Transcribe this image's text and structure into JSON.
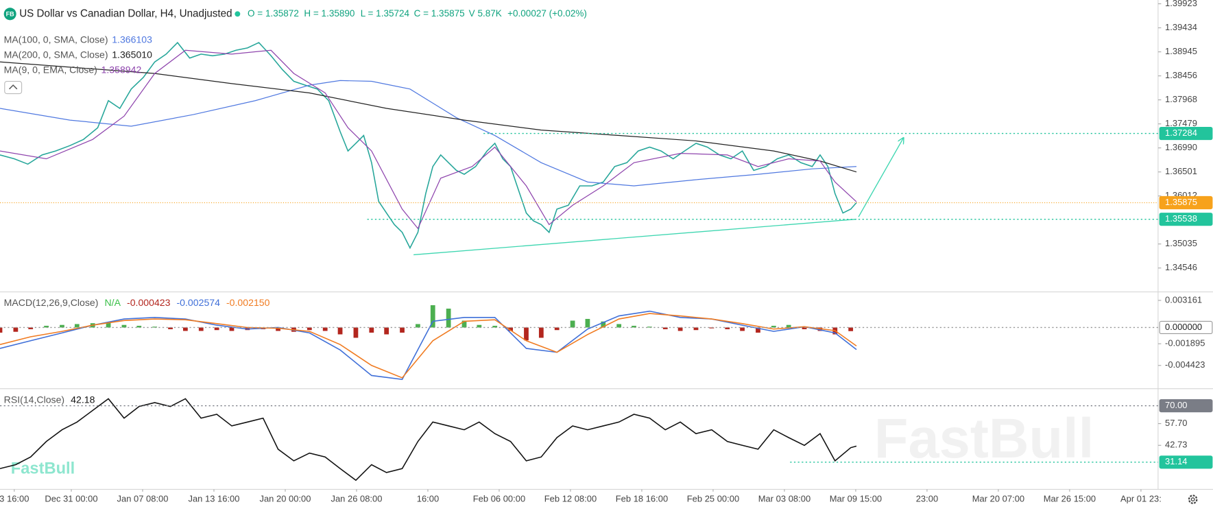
{
  "header": {
    "logo": "FB",
    "title": "US Dollar vs Canadian Dollar, H4, Unadjusted",
    "ohlc": [
      "O = 1.35872",
      "H = 1.35890",
      "L = 1.35724",
      "C = 1.35875",
      "V 5.87K"
    ],
    "change": "+0.00027 (+0.02%)",
    "watermark": "FastBull"
  },
  "chart_data": [
    {
      "type": "line",
      "xlim": [
        0,
        16.24
      ],
      "ylim": [
        1.3406,
        1.4
      ],
      "yticks": [
        1.39923,
        1.39434,
        1.38945,
        1.38456,
        1.37968,
        1.37479,
        {
          "value": 1.3699,
          "label": "1.36990"
        },
        1.36501,
        1.36012,
        1.35035,
        1.34546
      ],
      "current_color": "#f7a21b",
      "levels": [
        {
          "value": 1.37284,
          "color": "#22c49c",
          "start": 6.78
        },
        {
          "value": 1.35538,
          "color": "#22c49c",
          "start": 5.15
        }
      ],
      "drawings": [
        {
          "kind": "line",
          "x": [
            5.8,
            12.01
          ],
          "values": [
            1.34814,
            1.35539
          ],
          "color": "#3dd6b0"
        },
        {
          "kind": "arrow",
          "x": [
            12.04,
            12.67
          ],
          "values": [
            1.35587,
            1.37195
          ],
          "color": "#3dd6b0"
        }
      ],
      "series": [
        {
          "color": "#26a69a",
          "x": [
            0,
            0.2,
            0.39,
            0.59,
            0.78,
            0.98,
            1.17,
            1.37,
            1.52,
            1.68,
            1.84,
            2.01,
            2.17,
            2.33,
            2.49,
            2.66,
            2.82,
            2.98,
            3.15,
            3.31,
            3.47,
            3.63,
            3.8,
            3.96,
            4.12,
            4.28,
            4.45,
            4.61,
            4.77,
            4.88,
            4.99,
            5.1,
            5.21,
            5.31,
            5.42,
            5.53,
            5.64,
            5.75,
            5.86,
            5.97,
            6.07,
            6.18,
            6.29,
            6.4,
            6.51,
            6.67,
            6.83,
            6.94,
            7.05,
            7.16,
            7.27,
            7.38,
            7.48,
            7.59,
            7.7,
            7.81,
            7.97,
            8.13,
            8.3,
            8.46,
            8.62,
            8.79,
            8.95,
            9.11,
            9.27,
            9.44,
            9.6,
            9.76,
            9.92,
            10.09,
            10.25,
            10.41,
            10.57,
            10.74,
            10.9,
            11.06,
            11.23,
            11.39,
            11.5,
            11.61,
            11.71,
            11.82,
            11.93,
            12.01
          ],
          "values": [
            1.36848,
            1.36769,
            1.36659,
            1.36848,
            1.36927,
            1.37037,
            1.37163,
            1.374,
            1.37952,
            1.37794,
            1.38188,
            1.38425,
            1.3874,
            1.38898,
            1.39134,
            1.38819,
            1.38898,
            1.38866,
            1.38898,
            1.38977,
            1.39024,
            1.39134,
            1.38866,
            1.38583,
            1.38346,
            1.38267,
            1.38188,
            1.37952,
            1.37321,
            1.36927,
            1.37084,
            1.37242,
            1.3669,
            1.35902,
            1.35665,
            1.35429,
            1.35271,
            1.34955,
            1.35271,
            1.36059,
            1.36611,
            1.36848,
            1.3669,
            1.36532,
            1.36453,
            1.36611,
            1.36927,
            1.37084,
            1.36769,
            1.36611,
            1.36138,
            1.35665,
            1.35507,
            1.35429,
            1.35271,
            1.35744,
            1.35823,
            1.36217,
            1.36217,
            1.36296,
            1.36611,
            1.3669,
            1.36927,
            1.37006,
            1.36927,
            1.36769,
            1.36927,
            1.37084,
            1.37006,
            1.36848,
            1.36769,
            1.36927,
            1.36532,
            1.36611,
            1.36769,
            1.36848,
            1.3669,
            1.36611,
            1.36848,
            1.36611,
            1.36059,
            1.35665,
            1.35744,
            1.35875
          ]
        },
        {
          "name": "MA(100, 0, SMA, Close)",
          "color": "#4f78e0",
          "x": [
            0,
            0.98,
            1.84,
            2.71,
            3.58,
            4.34,
            4.77,
            5.21,
            5.75,
            6.4,
            6.94,
            7.59,
            8.24,
            8.89,
            9.76,
            10.63,
            11.39,
            12.01
          ],
          "values": [
            1.37794,
            1.37557,
            1.37431,
            1.37668,
            1.37952,
            1.38267,
            1.38362,
            1.38346,
            1.38188,
            1.37605,
            1.37242,
            1.3669,
            1.36296,
            1.36217,
            1.36343,
            1.36453,
            1.36564,
            1.366103
          ]
        },
        {
          "name": "MA(200, 0, SMA, Close)",
          "color": "#222222",
          "x": [
            0,
            2.17,
            3.25,
            4.34,
            5.42,
            6.51,
            7.59,
            8.68,
            9.76,
            10.85,
            11.5,
            12.01
          ],
          "values": [
            1.3874,
            1.38504,
            1.38299,
            1.38109,
            1.37794,
            1.37557,
            1.37353,
            1.37242,
            1.37132,
            1.36927,
            1.36722,
            1.36501
          ],
          "value_labels": [
            null,
            null,
            null,
            null,
            null,
            null,
            null,
            null,
            null,
            null,
            null,
            "1.365010"
          ]
        },
        {
          "name": "MA(9, 0, EMA, Close)",
          "color": "#8e44ad",
          "x": [
            0,
            0.65,
            1.3,
            1.74,
            2.17,
            2.6,
            3.25,
            3.8,
            4.12,
            4.56,
            4.88,
            5.21,
            5.64,
            5.86,
            6.18,
            6.62,
            6.94,
            7.38,
            7.7,
            8.03,
            8.46,
            8.89,
            9.54,
            10.2,
            10.63,
            11.06,
            11.5,
            11.71,
            12.01
          ],
          "values": [
            1.36927,
            1.36769,
            1.37163,
            1.37636,
            1.38504,
            1.38977,
            1.38898,
            1.38977,
            1.38504,
            1.38109,
            1.374,
            1.36927,
            1.35744,
            1.3535,
            1.36375,
            1.36611,
            1.37006,
            1.36217,
            1.35429,
            1.35823,
            1.36217,
            1.3669,
            1.36879,
            1.36848,
            1.36611,
            1.36769,
            1.36722,
            1.36296,
            1.358942
          ]
        }
      ]
    },
    {
      "type": "macd",
      "title": "MACD(12,26,9,Close)",
      "status": "N/A",
      "status_color": "#3cc04a",
      "xlim": [
        0,
        16.24
      ],
      "ylim": [
        -0.00713,
        0.00415
      ],
      "yticks": [
        0.003161,
        -0.001895,
        -0.004423
      ],
      "levels": [
        {
          "value": 0,
          "label": "0.000000",
          "color": "#999999",
          "fill": "#ffffff",
          "text_color": "#222222"
        }
      ],
      "series": [
        {
          "kind": "bar",
          "color": "#4caf50",
          "negative_color": "#b3261e",
          "x": [
            0,
            0.22,
            0.43,
            0.65,
            0.87,
            1.08,
            1.3,
            1.52,
            1.74,
            1.95,
            2.17,
            2.39,
            2.6,
            2.82,
            3.04,
            3.25,
            3.47,
            3.69,
            3.9,
            4.12,
            4.34,
            4.56,
            4.77,
            4.99,
            5.21,
            5.42,
            5.64,
            5.86,
            6.07,
            6.29,
            6.51,
            6.72,
            6.94,
            7.16,
            7.38,
            7.59,
            7.81,
            8.03,
            8.24,
            8.46,
            8.68,
            8.89,
            9.11,
            9.33,
            9.54,
            9.76,
            9.98,
            10.2,
            10.41,
            10.63,
            10.85,
            11.06,
            11.28,
            11.5,
            11.71,
            11.93
          ],
          "values": [
            -0.0006,
            -0.0005,
            -0.0002,
            0.0002,
            0.0003,
            0.0004,
            0.0005,
            0.0006,
            0.0003,
            0.0002,
            0.0001,
            -0.0002,
            -0.0004,
            -0.0004,
            -0.0003,
            -0.0004,
            -0.0003,
            -0.0002,
            -0.0004,
            -0.0005,
            -0.0003,
            -0.0004,
            -0.0008,
            -0.0012,
            -0.0006,
            -0.0008,
            -0.0006,
            0.0004,
            0.0026,
            0.0022,
            0.0008,
            0.0003,
            0.0002,
            -0.0004,
            -0.0015,
            -0.0012,
            -0.0003,
            0.0008,
            0.001,
            0.0007,
            0.0004,
            0.0002,
            0.0001,
            -0.0002,
            -0.0004,
            -0.0003,
            -0.0001,
            -0.0002,
            -0.0004,
            -0.0006,
            0.0002,
            0.0003,
            -0.0002,
            -0.0004,
            -0.0008,
            -0.000423
          ]
        },
        {
          "color": "#3f6fd8",
          "x": [
            0,
            0.43,
            0.87,
            1.3,
            1.74,
            2.17,
            2.6,
            3.04,
            3.47,
            3.9,
            4.34,
            4.77,
            5.21,
            5.64,
            6.07,
            6.51,
            6.94,
            7.38,
            7.81,
            8.24,
            8.68,
            9.11,
            9.54,
            9.98,
            10.41,
            10.85,
            11.28,
            11.71,
            12.01
          ],
          "values": [
            -0.00244,
            -0.00154,
            -0.00063,
            0.00027,
            0.00099,
            0.00117,
            0.00099,
            0.00027,
            -0.00018,
            0,
            -0.00063,
            -0.00262,
            -0.0056,
            -0.00605,
            0.00072,
            0.00117,
            0.00117,
            -0.00244,
            -0.00289,
            -0.00018,
            0.00135,
            0.0019,
            0.00117,
            0.00099,
            0.00027,
            -0.00045,
            9e-05,
            -0.00063,
            -0.002574
          ]
        },
        {
          "color": "#f07b21",
          "x": [
            0,
            0.43,
            0.87,
            1.3,
            1.74,
            2.17,
            2.6,
            3.04,
            3.47,
            3.9,
            4.34,
            4.77,
            5.21,
            5.64,
            6.07,
            6.51,
            6.94,
            7.38,
            7.81,
            8.24,
            8.68,
            9.11,
            9.54,
            9.98,
            10.41,
            10.85,
            11.28,
            11.71,
            12.01
          ],
          "values": [
            -0.00199,
            -0.00108,
            -0.00045,
            0.00027,
            0.00081,
            0.00099,
            0.0009,
            0.00045,
            0,
            -9e-05,
            -0.00045,
            -0.00199,
            -0.00442,
            -0.00587,
            -0.00154,
            0.00072,
            0.0009,
            -0.00154,
            -0.00289,
            -0.00081,
            0.00099,
            0.00163,
            0.00135,
            0.00099,
            0.00045,
            -0.00018,
            9e-05,
            -0.00036,
            -0.00215
          ],
          "value_labels": [
            null,
            null,
            null,
            null,
            null,
            null,
            null,
            null,
            null,
            null,
            null,
            null,
            null,
            null,
            null,
            null,
            null,
            null,
            null,
            null,
            null,
            null,
            null,
            null,
            null,
            null,
            null,
            null,
            "-0.002150"
          ]
        }
      ]
    },
    {
      "type": "line",
      "title": "RSI(14,Close)",
      "xlim": [
        0,
        16.24
      ],
      "ylim": [
        12.43,
        81.76
      ],
      "yticks": [
        {
          "value": 57.7,
          "label": "57.70"
        },
        42.73
      ],
      "levels": [
        {
          "value": 70,
          "label": "70.00",
          "color": "#7a7d86"
        },
        {
          "value": 31.14,
          "color": "#22c49c",
          "start": 11.08
        }
      ],
      "xticks": [
        {
          "value": 0.2,
          "label": "3 16:00"
        },
        {
          "value": 1,
          "label": "Dec 31 00:00"
        },
        {
          "value": 2,
          "label": "Jan 07 08:00"
        },
        {
          "value": 3,
          "label": "Jan 13 16:00"
        },
        {
          "value": 4,
          "label": "Jan 20 00:00"
        },
        {
          "value": 5,
          "label": "Jan 26 08:00"
        },
        {
          "value": 6,
          "label": "16:00"
        },
        {
          "value": 7,
          "label": "Feb 06 00:00"
        },
        {
          "value": 8,
          "label": "Feb 12 08:00"
        },
        {
          "value": 9,
          "label": "Feb 18 16:00"
        },
        {
          "value": 10,
          "label": "Feb 25 00:00"
        },
        {
          "value": 11,
          "label": "Mar 03 08:00"
        },
        {
          "value": 12,
          "label": "Mar 09 15:00"
        },
        {
          "value": 13,
          "label": "23:00"
        },
        {
          "value": 14,
          "label": "Mar 20 07:00"
        },
        {
          "value": 15,
          "label": "Mar 26 15:00"
        },
        {
          "value": 16,
          "label": "Apr 01 23:"
        }
      ],
      "series": [
        {
          "color": "#111111",
          "x": [
            0,
            0.22,
            0.43,
            0.65,
            0.87,
            1.08,
            1.3,
            1.52,
            1.74,
            1.95,
            2.17,
            2.39,
            2.6,
            2.82,
            3.04,
            3.25,
            3.47,
            3.69,
            3.9,
            4.12,
            4.34,
            4.56,
            4.77,
            4.99,
            5.21,
            5.42,
            5.64,
            5.86,
            6.07,
            6.29,
            6.51,
            6.72,
            6.94,
            7.16,
            7.38,
            7.59,
            7.81,
            8.03,
            8.24,
            8.46,
            8.68,
            8.89,
            9.11,
            9.33,
            9.54,
            9.76,
            9.98,
            10.2,
            10.41,
            10.63,
            10.85,
            11.06,
            11.28,
            11.5,
            11.71,
            11.93,
            12.01
          ],
          "values": [
            26.7,
            29.37,
            34.72,
            45.41,
            53.43,
            58.77,
            66.79,
            74.81,
            61.45,
            69.47,
            72.14,
            69.47,
            74.81,
            61.45,
            64.12,
            56.1,
            58.77,
            61.45,
            40.06,
            32.04,
            37.39,
            34.72,
            26.7,
            18.68,
            29.37,
            24.02,
            26.7,
            45.41,
            58.77,
            56.1,
            53.43,
            58.77,
            50.75,
            45.41,
            32.04,
            34.72,
            48.08,
            56.1,
            53.43,
            56.1,
            58.77,
            64.12,
            61.45,
            53.43,
            58.77,
            50.75,
            53.43,
            45.41,
            42.74,
            40.06,
            53.43,
            48.08,
            42.74,
            50.75,
            32.04,
            41.13,
            42.18
          ]
        }
      ]
    }
  ]
}
